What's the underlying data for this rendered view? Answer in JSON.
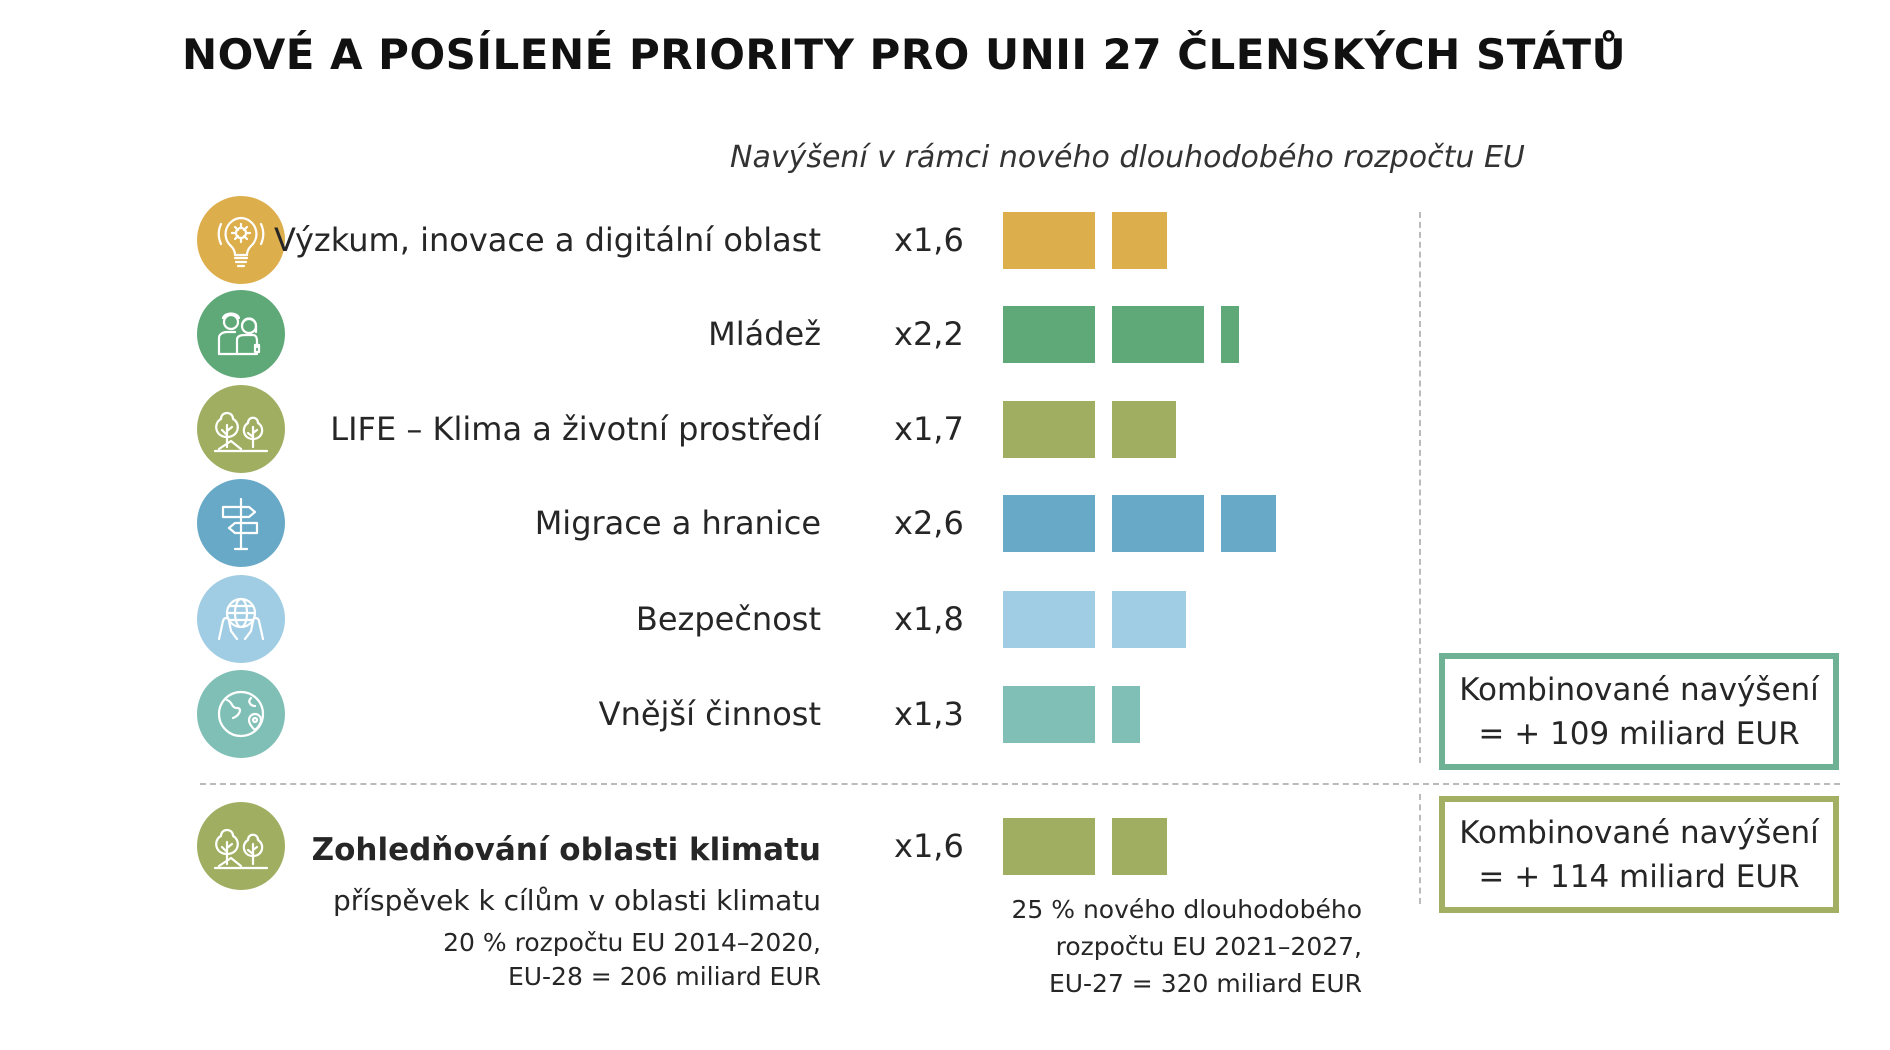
{
  "title": "NOVÉ A POSÍLENÉ PRIORITY PRO UNII 27 ČLENSKÝCH STÁTŮ",
  "subtitle": "Navýšení v rámci nového dlouhodobého rozpočtu EU",
  "chart_data": {
    "type": "bar",
    "orientation": "horizontal",
    "title": "NOVÉ A POSÍLENÉ PRIORITY PRO UNII 27 ČLENSKÝCH STÁTŮ",
    "subtitle": "Navýšení v rámci nového dlouhodobého rozpočtu EU",
    "categories": [
      "Výzkum, inovace a digitální oblast",
      "Mládež",
      "LIFE – Klima a životní prostředí",
      "Migrace a hranice",
      "Bezpečnost",
      "Vnější činnost",
      "Zohledňování oblasti klimatu"
    ],
    "values": [
      1.6,
      2.2,
      1.7,
      2.6,
      1.8,
      1.3,
      1.6
    ],
    "value_labels": [
      "x1,6",
      "x2,2",
      "x1,7",
      "x2,6",
      "x1,8",
      "x1,3",
      "x1,6"
    ],
    "colors": [
      "#DDAE4C",
      "#5FA878",
      "#A0AE62",
      "#67A9C6",
      "#A0CDE3",
      "#7FBFB6",
      "#A0AE62"
    ],
    "icons": [
      "lightbulb-gear-icon",
      "youth-people-icon",
      "trees-icon",
      "signpost-icon",
      "hands-globe-icon",
      "globe-location-icon",
      "trees-icon"
    ]
  },
  "climate": {
    "label": "Zohledňování oblasti klimatu",
    "sublabel": "příspěvek k cílům v oblasti klimatu",
    "old_line1": "20 % rozpočtu EU 2014–2020,",
    "old_line2": "EU-28 = 206 miliard EUR",
    "new_line1": "25 % nového dlouhodobého",
    "new_line2": "rozpočtu EU 2021–2027,",
    "new_line3": "EU-27 = 320 miliard EUR"
  },
  "boxes": [
    {
      "line1": "Kombinované navýšení",
      "line2": "= + 109 miliard EUR",
      "color": "#6FB195"
    },
    {
      "line1": "Kombinované navýšení",
      "line2": "= + 114 miliard EUR",
      "color": "#A3B064"
    }
  ]
}
